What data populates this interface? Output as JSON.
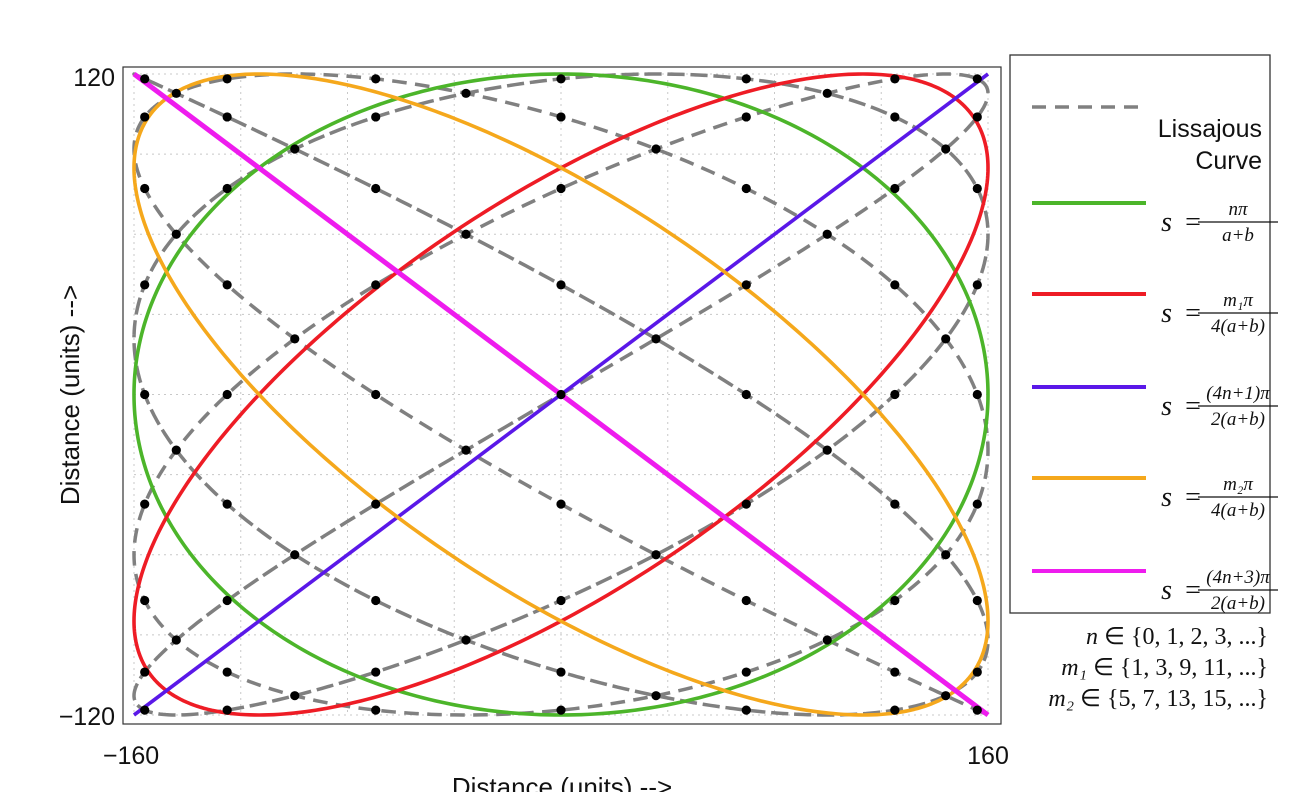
{
  "chart_data": {
    "type": "line",
    "title": "",
    "xlabel": "Distance (units) -->",
    "ylabel": "Distance (units) -->",
    "xlim": [
      -160,
      160
    ],
    "ylim": [
      -120,
      120
    ],
    "x_tick_labels": [
      "−160",
      "160"
    ],
    "y_tick_labels": [
      "120",
      "−120"
    ],
    "grid": true,
    "legend_position": "right",
    "colors": {
      "lissajous": "#808080",
      "green": "#4cb52a",
      "red": "#ee1c25",
      "blue": "#5a18e8",
      "orange": "#f5a81c",
      "magenta": "#ee1cee",
      "points": "#000000"
    },
    "series": [
      {
        "name": "Lissajous Curve",
        "style": "dashed",
        "color": "#808080",
        "parametric": {
          "a": 9,
          "b": 7,
          "x_amplitude": 160,
          "y_amplitude": 120
        }
      },
      {
        "name": "s = nπ/(a+b)",
        "style": "solid",
        "color": "#4cb52a",
        "parametric": {
          "x_amplitude": 160,
          "y_amplitude": 120,
          "phase": 90
        }
      },
      {
        "name": "s = m₁π/(4(a+b))",
        "style": "solid",
        "color": "#ee1c25",
        "parametric": {
          "x_amplitude": 160,
          "y_amplitude": 120,
          "phase": 45
        }
      },
      {
        "name": "s = (4n+1)π/(2(a+b))",
        "style": "solid",
        "color": "#5a18e8",
        "points": [
          [
            -160,
            -120
          ],
          [
            160,
            120
          ]
        ]
      },
      {
        "name": "s = m₂π/(4(a+b))",
        "style": "solid",
        "color": "#f5a81c",
        "parametric": {
          "x_amplitude": 160,
          "y_amplitude": 120,
          "phase": 135
        }
      },
      {
        "name": "s = (4n+3)π/(2(a+b))",
        "style": "solid",
        "color": "#ee1cee",
        "points": [
          [
            -160,
            120
          ],
          [
            160,
            -120
          ]
        ]
      }
    ],
    "intersection_points": {
      "a": 9,
      "b": 7,
      "description": "self-intersection points of the Lissajous curve"
    }
  },
  "legend": {
    "lissajous": {
      "line1": "Lissajous",
      "line2": "Curve"
    },
    "entries": [
      {
        "key": "green",
        "lhs": "s",
        "num": "nπ",
        "den": "a+b"
      },
      {
        "key": "red",
        "lhs": "s",
        "num": "m₁π",
        "den": "4(a+b)"
      },
      {
        "key": "blue",
        "lhs": "s",
        "num": "(4n+1)π",
        "den": "2(a+b)"
      },
      {
        "key": "orange",
        "lhs": "s",
        "num": "m₂π",
        "den": "4(a+b)"
      },
      {
        "key": "magenta",
        "lhs": "s",
        "num": "(4n+3)π",
        "den": "2(a+b)"
      }
    ]
  },
  "sets": [
    {
      "var": "n",
      "set": "{0, 1, 2, 3, ...}"
    },
    {
      "var": "m₁",
      "set": "{1, 3, 9, 11, ...}"
    },
    {
      "var": "m₂",
      "set": "{5, 7, 13, 15, ...}"
    }
  ]
}
